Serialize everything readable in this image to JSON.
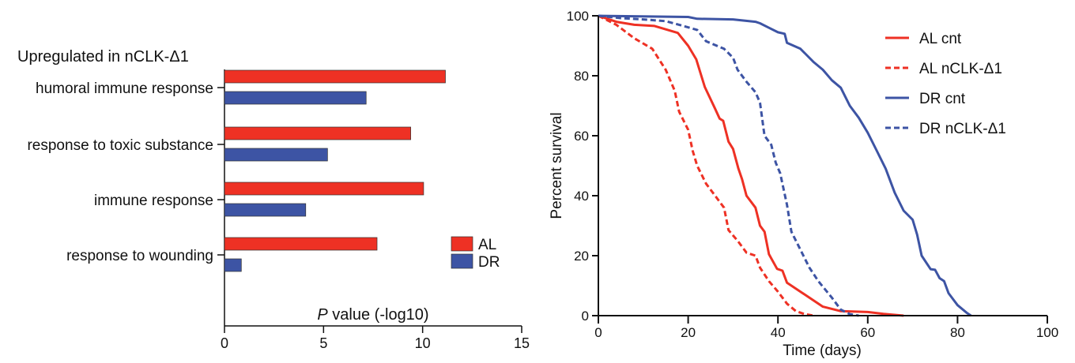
{
  "chart_data": [
    {
      "type": "bar",
      "orientation": "horizontal",
      "title": "Upregulated in nCLK-Δ1",
      "categories": [
        "humoral immune response",
        "response to toxic substance",
        "immune response",
        "response to wounding"
      ],
      "series": [
        {
          "name": "AL",
          "color": "#ee3124",
          "values": [
            11.15,
            9.4,
            10.05,
            7.7
          ]
        },
        {
          "name": "DR",
          "color": "#3d54a4",
          "values": [
            7.15,
            5.2,
            4.1,
            0.85
          ]
        }
      ],
      "xlabel_italic": "P",
      "xlabel": " value (-log10)",
      "xlim": [
        0,
        15
      ],
      "xticks": [
        "0",
        "5",
        "10",
        "15"
      ],
      "legend": "bottom-right",
      "grid": false
    },
    {
      "type": "line",
      "xlabel": "Time (days)",
      "ylabel": "Percent survival",
      "xlim": [
        0,
        100
      ],
      "ylim": [
        0,
        100
      ],
      "xticks": [
        "0",
        "20",
        "40",
        "60",
        "80",
        "100"
      ],
      "yticks": [
        "0",
        "20",
        "40",
        "60",
        "80",
        "100"
      ],
      "legend": "top-right",
      "grid": false,
      "series": [
        {
          "name": "AL cnt",
          "color": "#ee3124",
          "dashed": false,
          "points": [
            [
              0,
              100
            ],
            [
              4,
              98
            ],
            [
              8,
              97
            ],
            [
              12.5,
              96.6
            ],
            [
              17.7,
              94.3
            ],
            [
              20,
              90
            ],
            [
              21.8,
              85.5
            ],
            [
              23.7,
              76.3
            ],
            [
              26,
              69
            ],
            [
              27,
              65.7
            ],
            [
              27.8,
              65
            ],
            [
              29,
              58
            ],
            [
              30,
              55.6
            ],
            [
              31.2,
              49
            ],
            [
              32,
              45.5
            ],
            [
              33,
              40
            ],
            [
              35,
              36
            ],
            [
              36,
              30
            ],
            [
              37,
              28
            ],
            [
              38,
              20.5
            ],
            [
              39.8,
              15.6
            ],
            [
              41,
              15
            ],
            [
              42,
              11
            ],
            [
              46,
              7
            ],
            [
              50,
              3
            ],
            [
              54,
              1.5
            ],
            [
              60,
              1.2
            ],
            [
              63.5,
              0.6
            ],
            [
              68,
              0
            ]
          ]
        },
        {
          "name": "AL nCLK-Δ1",
          "color": "#ee3124",
          "dashed": true,
          "points": [
            [
              0,
              100
            ],
            [
              4,
              97
            ],
            [
              8,
              92.5
            ],
            [
              12,
              89
            ],
            [
              15,
              82
            ],
            [
              17,
              75
            ],
            [
              18,
              68
            ],
            [
              20,
              62
            ],
            [
              21,
              55
            ],
            [
              22,
              50
            ],
            [
              24,
              44
            ],
            [
              26,
              40
            ],
            [
              28,
              36
            ],
            [
              29,
              28.5
            ],
            [
              31,
              25
            ],
            [
              33,
              21
            ],
            [
              35,
              20
            ],
            [
              36,
              16
            ],
            [
              38,
              11.5
            ],
            [
              40,
              8
            ],
            [
              42,
              4
            ],
            [
              44,
              1.5
            ],
            [
              46,
              0.5
            ],
            [
              48,
              0
            ]
          ]
        },
        {
          "name": "DR cnt",
          "color": "#3d54a4",
          "dashed": false,
          "points": [
            [
              0,
              100
            ],
            [
              20,
              99.6
            ],
            [
              22,
              99
            ],
            [
              30,
              98.8
            ],
            [
              35,
              98
            ],
            [
              36,
              97.5
            ],
            [
              38,
              96
            ],
            [
              40,
              94.5
            ],
            [
              41.5,
              94
            ],
            [
              42,
              91
            ],
            [
              45,
              89
            ],
            [
              46,
              87.5
            ],
            [
              48,
              84.5
            ],
            [
              50,
              82
            ],
            [
              52,
              78.5
            ],
            [
              54,
              76
            ],
            [
              56,
              70
            ],
            [
              58,
              66
            ],
            [
              60,
              61
            ],
            [
              62,
              55
            ],
            [
              64,
              49
            ],
            [
              66,
              41
            ],
            [
              68,
              35
            ],
            [
              70,
              32
            ],
            [
              71,
              27
            ],
            [
              72,
              20
            ],
            [
              74,
              15.5
            ],
            [
              75,
              15.3
            ],
            [
              76,
              12.5
            ],
            [
              77,
              11.5
            ],
            [
              78,
              7.5
            ],
            [
              80,
              3.5
            ],
            [
              82,
              1
            ],
            [
              83,
              0
            ]
          ]
        },
        {
          "name": "DR nCLK-Δ1",
          "color": "#3d54a4",
          "dashed": true,
          "points": [
            [
              0,
              100
            ],
            [
              5,
              99.2
            ],
            [
              10,
              98.8
            ],
            [
              15,
              98.2
            ],
            [
              18,
              97
            ],
            [
              22,
              95.3
            ],
            [
              24,
              91.5
            ],
            [
              28,
              89
            ],
            [
              30,
              86
            ],
            [
              31,
              82
            ],
            [
              33,
              78
            ],
            [
              35,
              74.5
            ],
            [
              36,
              71
            ],
            [
              37,
              60
            ],
            [
              38.5,
              57
            ],
            [
              39.5,
              51
            ],
            [
              40.5,
              47.5
            ],
            [
              42,
              37
            ],
            [
              43,
              28
            ],
            [
              45,
              22
            ],
            [
              47,
              16
            ],
            [
              49,
              11.5
            ],
            [
              52,
              6
            ],
            [
              54,
              2
            ],
            [
              56,
              0.5
            ],
            [
              58,
              0
            ]
          ]
        }
      ]
    }
  ]
}
